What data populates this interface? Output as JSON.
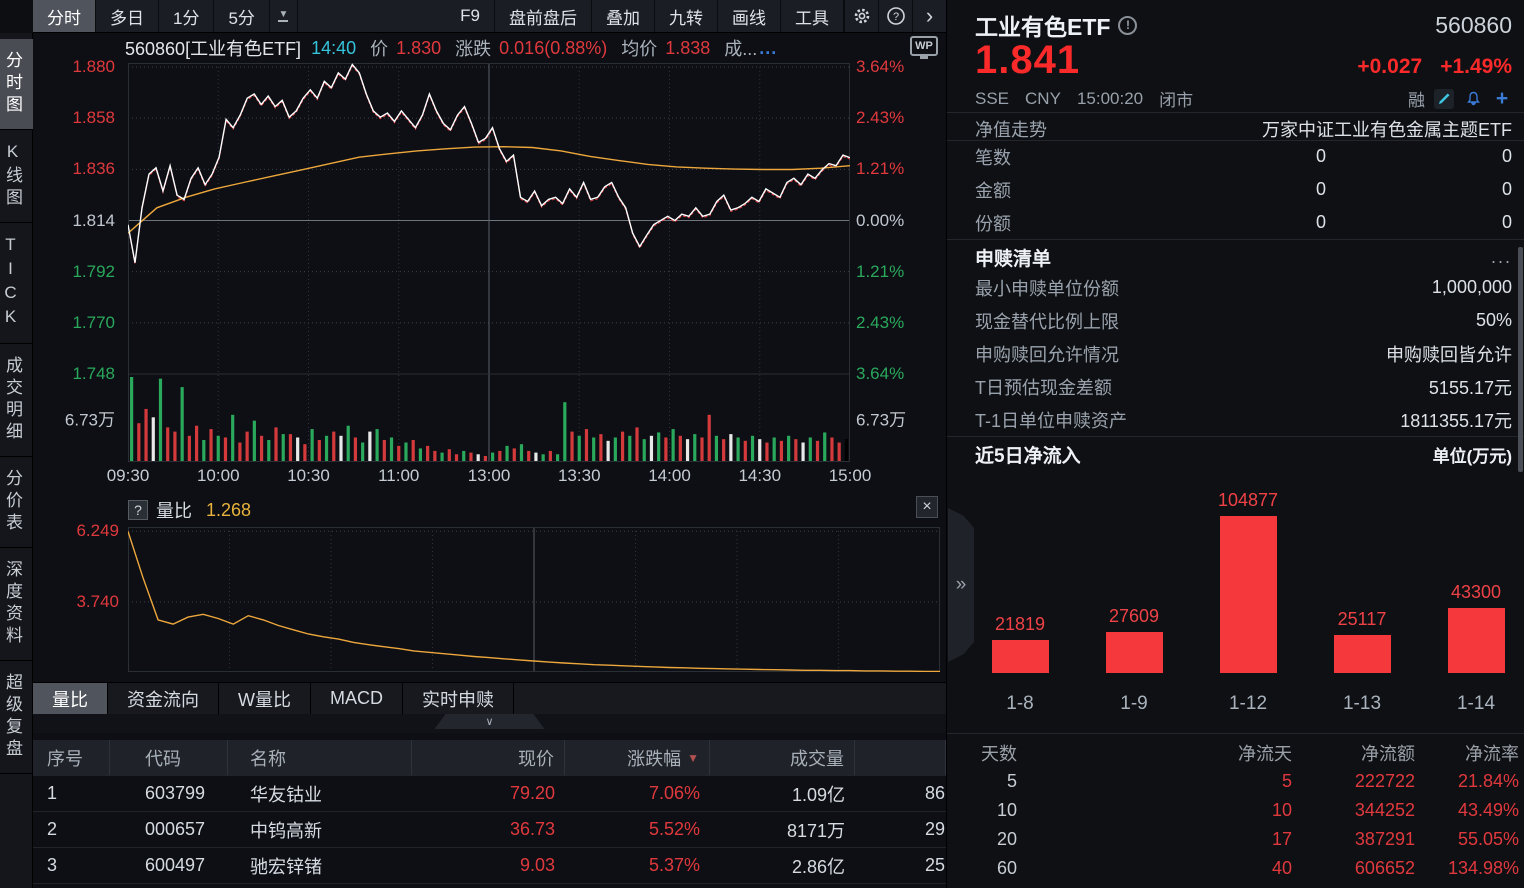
{
  "colors": {
    "accent_red": "#e0393d",
    "bright_red": "#fb2a2a",
    "green": "#2aa85c",
    "yellow": "#e8b23c",
    "cyan": "#35c3da",
    "blue": "#3a7bd5",
    "bar_red": "#f5383b"
  },
  "toolbar": {
    "left_tabs": [
      {
        "label": "分时",
        "selected": true
      },
      {
        "label": "多日",
        "selected": false
      },
      {
        "label": "1分",
        "selected": false
      },
      {
        "label": "5分",
        "selected": false
      }
    ],
    "right_buttons": [
      "F9",
      "盘前盘后",
      "叠加",
      "九转",
      "画线",
      "工具"
    ]
  },
  "sidebar": {
    "items": [
      {
        "label": "分时图",
        "selected": true
      },
      {
        "label": "K线图",
        "selected": false
      },
      {
        "label": "TICK",
        "selected": false
      },
      {
        "label": "成交明细",
        "selected": false
      },
      {
        "label": "分价表",
        "selected": false
      },
      {
        "label": "深度资料",
        "selected": false
      },
      {
        "label": "超级复盘",
        "selected": false
      }
    ]
  },
  "chart_header": {
    "code_name": "560860[工业有色ETF]",
    "time": "14:40",
    "price_label": "价",
    "price": "1.830",
    "change_label": "涨跌",
    "change": "0.016(0.88%)",
    "avg_label": "均价",
    "avg": "1.838",
    "vol_label": "成...",
    "vol_dots": "...",
    "wp": "WP"
  },
  "main_chart": {
    "left_axis": [
      {
        "t": "1.880",
        "c": "red"
      },
      {
        "t": "1.858",
        "c": "red"
      },
      {
        "t": "1.836",
        "c": "red"
      },
      {
        "t": "1.814",
        "c": "gray"
      },
      {
        "t": "1.792",
        "c": "green"
      },
      {
        "t": "1.770",
        "c": "green"
      },
      {
        "t": "1.748",
        "c": "green"
      }
    ],
    "right_axis": [
      {
        "t": "3.64%",
        "c": "red"
      },
      {
        "t": "2.43%",
        "c": "red"
      },
      {
        "t": "1.21%",
        "c": "red"
      },
      {
        "t": "0.00%",
        "c": "gray"
      },
      {
        "t": "1.21%",
        "c": "green"
      },
      {
        "t": "2.43%",
        "c": "green"
      },
      {
        "t": "3.64%",
        "c": "green"
      }
    ],
    "vol_label_left": "6.73万",
    "vol_label_right": "6.73万",
    "times": [
      "09:30",
      "10:00",
      "10:30",
      "11:00",
      "13:00",
      "13:30",
      "14:00",
      "14:30",
      "15:00"
    ]
  },
  "sub_chart": {
    "help": "?",
    "title": "量比",
    "value": "1.268",
    "close": "×",
    "y_labels": [
      "6.249",
      "3.740"
    ]
  },
  "bottom_tabs": [
    {
      "label": "量比",
      "selected": true
    },
    {
      "label": "资金流向",
      "selected": false
    },
    {
      "label": "W量比",
      "selected": false
    },
    {
      "label": "MACD",
      "selected": false
    },
    {
      "label": "实时申赎",
      "selected": false
    }
  ],
  "stock_table": {
    "headers": [
      "序号",
      "代码",
      "名称",
      "现价",
      "涨跌幅",
      "成交量",
      ""
    ],
    "sort_col": 4,
    "rows": [
      [
        "1",
        "603799",
        "华友钴业",
        "79.20",
        "7.06%",
        "1.09亿",
        "86"
      ],
      [
        "2",
        "000657",
        "中钨高新",
        "36.73",
        "5.52%",
        "8171万",
        "29"
      ],
      [
        "3",
        "600497",
        "驰宏锌锗",
        "9.03",
        "5.37%",
        "2.86亿",
        "25"
      ]
    ]
  },
  "right_panel": {
    "name": "工业有色ETF",
    "code": "560860",
    "price": "1.841",
    "change": "+0.027",
    "change_pct": "+1.49%",
    "exchange": "SSE",
    "currency": "CNY",
    "time": "15:00:20",
    "status": "闭市",
    "margin_flag": "融",
    "info_rows": [
      {
        "label": "净值走势",
        "value": "万家中证工业有色金属主题ETF"
      },
      {
        "label": "笔数",
        "v1": "0",
        "v2": "0"
      },
      {
        "label": "金额",
        "v1": "0",
        "v2": "0"
      },
      {
        "label": "份额",
        "v1": "0",
        "v2": "0"
      }
    ],
    "subscribe": {
      "title": "申赎清单",
      "more": "...",
      "rows": [
        {
          "label": "最小申赎单位份额",
          "value": "1,000,000"
        },
        {
          "label": "现金替代比例上限",
          "value": "50%"
        },
        {
          "label": "申购赎回允许情况",
          "value": "申购赎回皆允许"
        },
        {
          "label": "T日预估现金差额",
          "value": "5155.17元"
        },
        {
          "label": "T-1日单位申赎资产",
          "value": "1811355.17元"
        }
      ]
    },
    "flow_header": {
      "title": "近5日净流入",
      "unit": "单位(万元)"
    },
    "flow_table": {
      "headers": [
        "天数",
        "净流天",
        "净流额",
        "净流率"
      ],
      "rows": [
        [
          "5",
          "5",
          "222722",
          "21.84%"
        ],
        [
          "10",
          "10",
          "344252",
          "43.49%"
        ],
        [
          "20",
          "17",
          "387291",
          "55.05%"
        ],
        [
          "60",
          "40",
          "606652",
          "134.98%"
        ]
      ]
    },
    "handle": "»"
  },
  "chart_data": [
    {
      "type": "line",
      "name": "intraday-price-pct",
      "x_range": [
        "09:30",
        "15:00"
      ],
      "ylim_pct": [
        -3.64,
        3.64
      ],
      "prev_close": 1.814,
      "values": [
        -0.1,
        -1.0,
        0.3,
        1.1,
        1.25,
        0.7,
        1.3,
        0.6,
        0.5,
        1.0,
        1.25,
        0.85,
        1.1,
        1.5,
        2.4,
        2.2,
        2.5,
        2.9,
        3.0,
        2.75,
        2.95,
        2.7,
        2.85,
        2.45,
        2.6,
        2.9,
        3.1,
        2.9,
        3.3,
        3.15,
        3.5,
        3.35,
        3.7,
        3.5,
        3.0,
        2.6,
        2.45,
        2.55,
        2.35,
        2.6,
        2.4,
        2.2,
        2.5,
        3.0,
        2.6,
        2.3,
        2.15,
        2.5,
        2.7,
        2.3,
        1.85,
        1.95,
        2.2,
        1.7,
        1.4,
        1.55,
        0.55,
        0.45,
        0.7,
        0.35,
        0.5,
        0.55,
        0.4,
        0.75,
        0.55,
        0.9,
        0.5,
        0.55,
        0.8,
        0.9,
        0.55,
        0.3,
        -0.3,
        -0.62,
        -0.35,
        -0.1,
        0.0,
        0.1,
        0.0,
        0.15,
        0.1,
        0.3,
        0.1,
        0.15,
        0.45,
        0.6,
        0.25,
        0.3,
        0.4,
        0.55,
        0.45,
        0.75,
        0.65,
        0.55,
        0.9,
        1.0,
        0.85,
        1.1,
        1.0,
        1.2,
        1.35,
        1.3,
        1.55,
        1.49
      ]
    },
    {
      "type": "line",
      "name": "avg-price-pct",
      "values": [
        -0.3,
        0.3,
        0.55,
        0.75,
        0.9,
        1.05,
        1.2,
        1.35,
        1.5,
        1.58,
        1.65,
        1.7,
        1.74,
        1.75,
        1.73,
        1.65,
        1.52,
        1.42,
        1.33,
        1.27,
        1.24,
        1.22,
        1.21,
        1.21,
        1.24,
        1.3
      ]
    },
    {
      "type": "bar",
      "name": "volume",
      "max_label": "6.73万",
      "heights": [
        100,
        45,
        62,
        52,
        98,
        40,
        35,
        88,
        30,
        42,
        25,
        38,
        30,
        28,
        55,
        22,
        35,
        48,
        30,
        25,
        40,
        32,
        32,
        28,
        20,
        38,
        25,
        30,
        35,
        30,
        42,
        28,
        22,
        35,
        38,
        25,
        28,
        18,
        22,
        25,
        15,
        18,
        12,
        10,
        14,
        8,
        12,
        10,
        8,
        6,
        10,
        12,
        18,
        15,
        20,
        12,
        10,
        8,
        12,
        8,
        70,
        35,
        30,
        38,
        28,
        32,
        24,
        28,
        35,
        30,
        40,
        26,
        30,
        34,
        28,
        38,
        30,
        26,
        32,
        28,
        55,
        30,
        26,
        32,
        28,
        24,
        30,
        26,
        22,
        28,
        24,
        30,
        26,
        22,
        28,
        24,
        34,
        28,
        22,
        26
      ],
      "bar_colors": "grrwgrrgrrgrgrgrrgrgrgrwrgrgrwgrgwgrgrgrgrrgrrgrwrgrgrgrwgrggrgrgrwgrgrgwgrgrwgrrgrwgrgwrgrgrwgrgrr"
    },
    {
      "type": "line",
      "name": "liangbi",
      "ylim": [
        1.25,
        6.4
      ],
      "y_ticks": [
        6.249,
        3.74
      ],
      "current": 1.268,
      "values": [
        6.249,
        4.6,
        3.1,
        2.95,
        3.2,
        3.3,
        3.15,
        2.95,
        3.25,
        3.1,
        2.9,
        2.75,
        2.6,
        2.5,
        2.42,
        2.3,
        2.22,
        2.15,
        2.08,
        2.0,
        1.95,
        1.9,
        1.85,
        1.8,
        1.76,
        1.72,
        1.68,
        1.64,
        1.6,
        1.57,
        1.54,
        1.51,
        1.49,
        1.47,
        1.45,
        1.43,
        1.41,
        1.4,
        1.38,
        1.37,
        1.36,
        1.35,
        1.34,
        1.33,
        1.32,
        1.31,
        1.31,
        1.3,
        1.3,
        1.29,
        1.29,
        1.28,
        1.28,
        1.27,
        1.27
      ]
    },
    {
      "type": "bar",
      "name": "net-inflow-5d",
      "unit": "万元",
      "categories": [
        "1-8",
        "1-9",
        "1-12",
        "1-13",
        "1-14"
      ],
      "values": [
        21819,
        27609,
        104877,
        25117,
        43300
      ]
    }
  ]
}
